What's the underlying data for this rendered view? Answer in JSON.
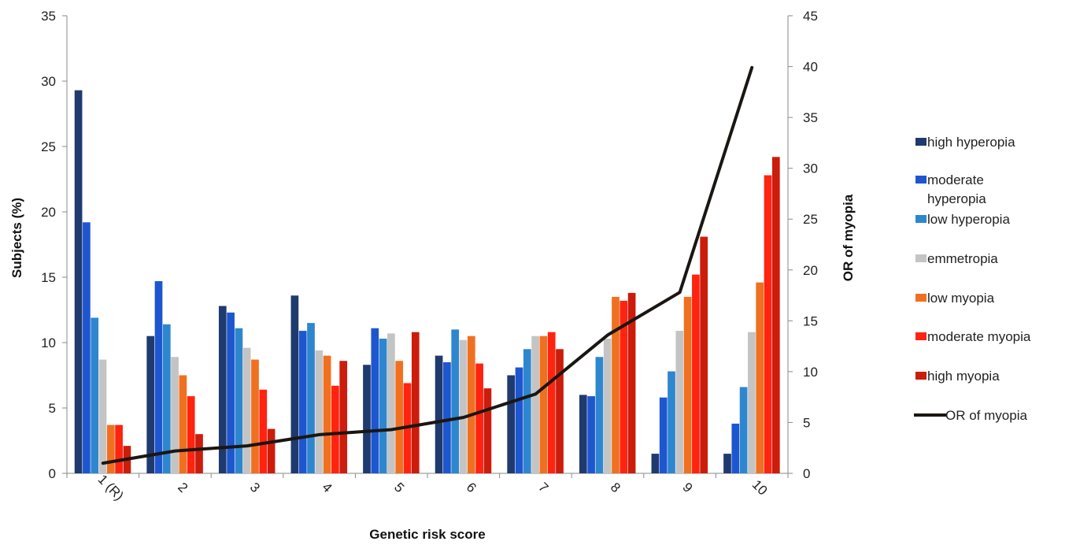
{
  "chart_data": {
    "type": "bar",
    "xlabel": "Genetic risk score",
    "ylabel": "Subjects (%)",
    "y2label": "OR of myopia",
    "categories": [
      "1 (R)",
      "2",
      "3",
      "4",
      "5",
      "6",
      "7",
      "8",
      "9",
      "10"
    ],
    "ylim": [
      0,
      35
    ],
    "yticks": [
      0,
      5,
      10,
      15,
      20,
      25,
      30,
      35
    ],
    "y2lim": [
      0,
      45
    ],
    "y2ticks": [
      0,
      5,
      10,
      15,
      20,
      25,
      30,
      35,
      40,
      45
    ],
    "grid": false,
    "legend_position": "right",
    "series": [
      {
        "name": "high hyperopia",
        "color": "#1f3a6e",
        "values": [
          29.3,
          10.5,
          12.8,
          13.6,
          8.3,
          9.0,
          7.5,
          6.0,
          1.5,
          1.5
        ]
      },
      {
        "name": "moderate hyperopia",
        "color": "#1e56d0",
        "values": [
          19.2,
          14.7,
          12.3,
          10.9,
          11.1,
          8.5,
          8.1,
          5.9,
          5.8,
          3.8
        ]
      },
      {
        "name": "low hyperopia",
        "color": "#2e86cf",
        "values": [
          11.9,
          11.4,
          11.1,
          11.5,
          10.3,
          11.0,
          9.5,
          8.9,
          7.8,
          6.6
        ]
      },
      {
        "name": "emmetropia",
        "color": "#c4c4c4",
        "values": [
          8.7,
          8.9,
          9.6,
          9.4,
          10.7,
          10.2,
          10.5,
          10.3,
          10.9,
          10.8
        ]
      },
      {
        "name": "low myopia",
        "color": "#f07020",
        "values": [
          3.7,
          7.5,
          8.7,
          9.0,
          8.6,
          10.5,
          10.5,
          13.5,
          13.5,
          14.6
        ]
      },
      {
        "name": "moderate myopia",
        "color": "#ff2310",
        "values": [
          3.7,
          5.9,
          6.4,
          6.7,
          6.9,
          8.4,
          10.8,
          13.2,
          15.2,
          22.8
        ]
      },
      {
        "name": "high myopia",
        "color": "#cc1c0c",
        "values": [
          2.1,
          3.0,
          3.4,
          8.6,
          10.8,
          6.5,
          9.5,
          13.8,
          18.1,
          24.2
        ]
      }
    ],
    "line_series": {
      "name": "OR of myopia",
      "axis": "y2",
      "color": "#1a1612",
      "values": [
        1.0,
        2.2,
        2.7,
        3.8,
        4.3,
        5.5,
        7.8,
        13.6,
        17.8,
        39.9
      ]
    },
    "legend": [
      "high hyperopia",
      "moderate\nhyperopia",
      "low hyperopia",
      "emmetropia",
      "low myopia",
      "moderate myopia",
      "high myopia",
      "OR of myopia"
    ]
  }
}
